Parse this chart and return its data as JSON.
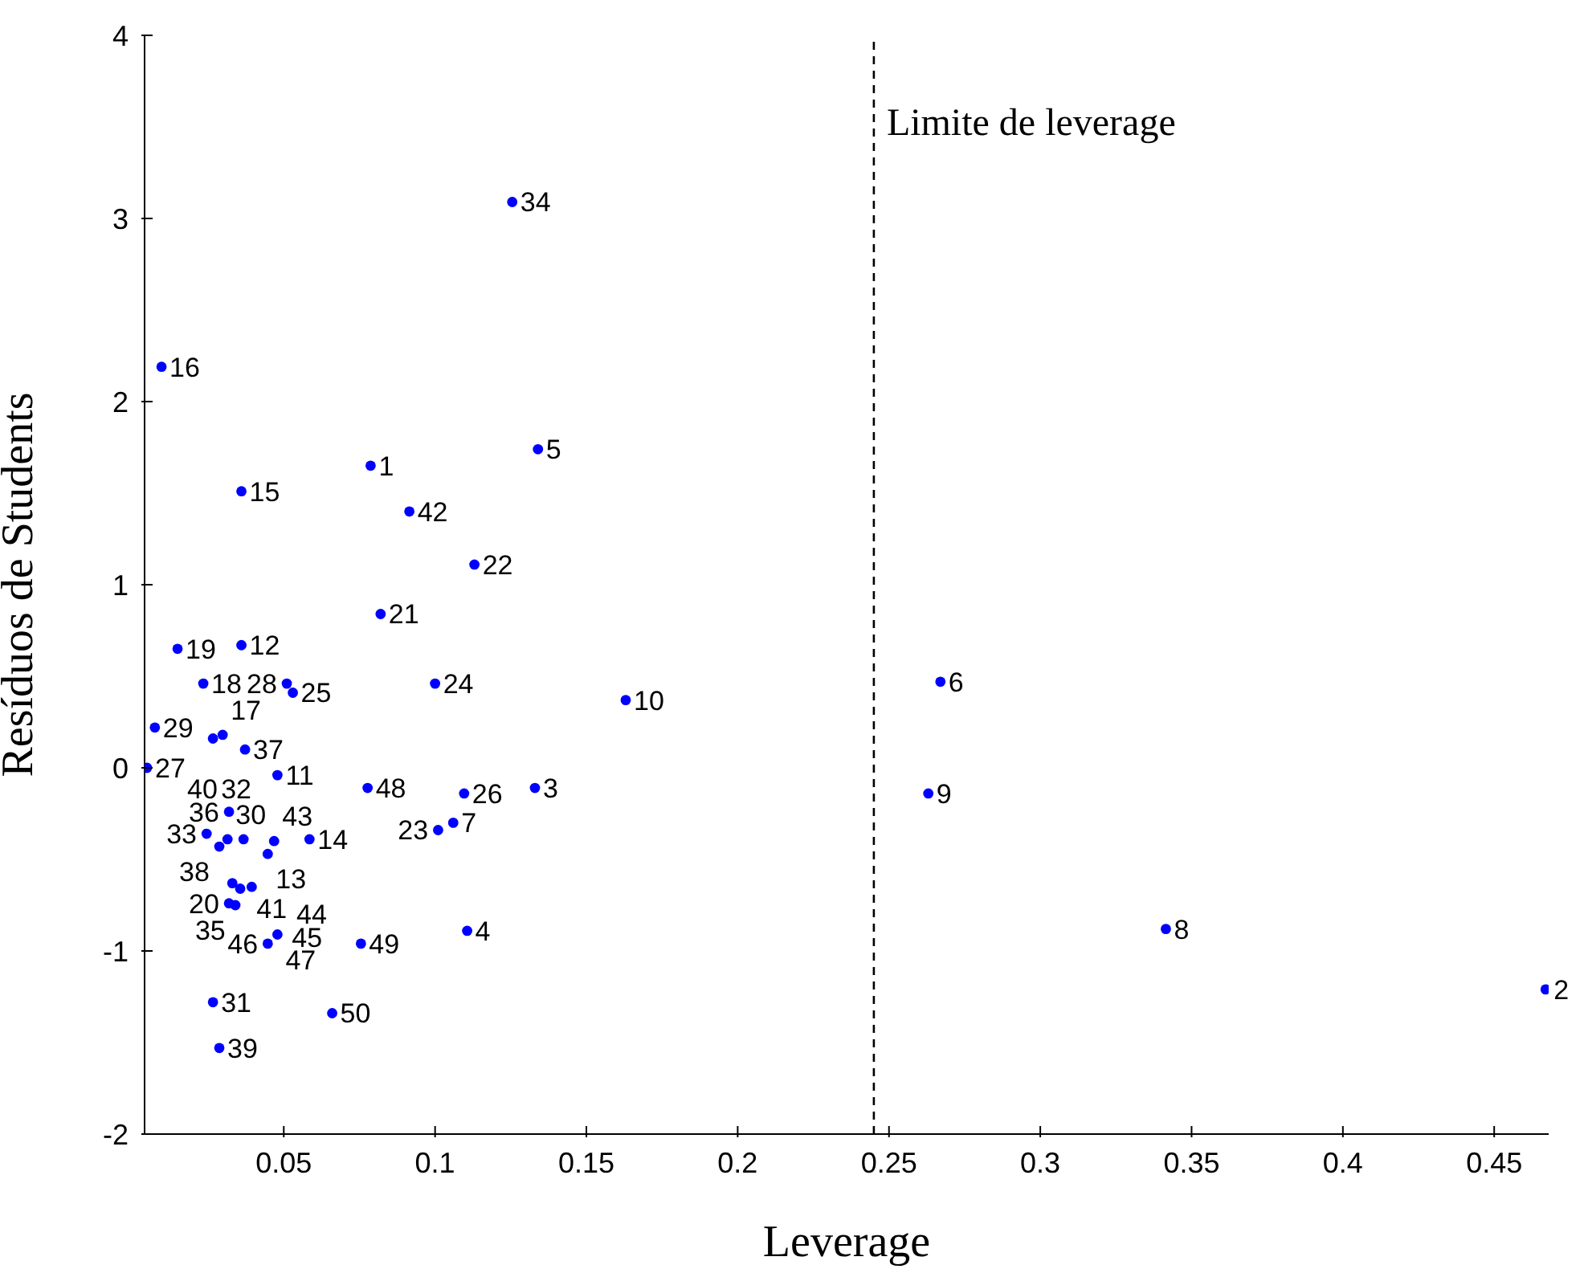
{
  "chart_data": {
    "type": "scatter",
    "xlabel": "Leverage",
    "ylabel": "Resíduos de Students",
    "xlim": [
      0.004,
      0.468
    ],
    "xticks": [
      0.05,
      0.1,
      0.15,
      0.2,
      0.25,
      0.3,
      0.35,
      0.4,
      0.45
    ],
    "ylim": [
      -2,
      4
    ],
    "yticks": [
      -2,
      -1,
      0,
      1,
      2,
      3,
      4
    ],
    "marker": "circle",
    "ref_lines": [
      {
        "axis": "x",
        "value": 0.245,
        "label": "Limite de leverage",
        "color": "#000000",
        "line_style": "dashed"
      }
    ],
    "series": [
      {
        "color": "#0000ff",
        "x": [
          0.0787,
          0.467,
          0.133,
          0.1106,
          0.134,
          0.267,
          0.106,
          0.3415,
          0.263,
          0.163,
          0.0479,
          0.036,
          0.0447,
          0.0585,
          0.036,
          0.0096,
          0.0298,
          0.0234,
          0.0149,
          0.0319,
          0.082,
          0.113,
          0.101,
          0.1,
          0.053,
          0.1096,
          0.0048,
          0.051,
          0.0074,
          0.0314,
          0.0266,
          0.0266,
          0.0245,
          0.1255,
          0.034,
          0.0319,
          0.0372,
          0.0287,
          0.0287,
          0.0367,
          0.033,
          0.0915,
          0.0468,
          0.0356,
          0.0394,
          0.0447,
          0.0479,
          0.0777,
          0.0755,
          0.066
        ],
        "values": [
          1.65,
          -1.21,
          -0.11,
          -0.89,
          1.74,
          0.47,
          -0.3,
          -0.88,
          -0.14,
          0.37,
          -0.04,
          0.67,
          -0.47,
          -0.39,
          1.51,
          2.19,
          0.18,
          0.46,
          0.65,
          -0.74,
          0.84,
          1.11,
          -0.34,
          0.46,
          0.41,
          -0.14,
          0.0,
          0.46,
          0.22,
          -0.39,
          -1.28,
          0.16,
          -0.36,
          3.09,
          -0.75,
          -0.24,
          0.1,
          -0.43,
          -1.53,
          -0.39,
          -0.63,
          1.4,
          -0.4,
          -0.66,
          -0.65,
          -0.96,
          -0.91,
          -0.11,
          -0.96,
          -1.34
        ]
      }
    ],
    "annotations": [
      {
        "text": "1",
        "x": 0.0787,
        "y": 1.65
      },
      {
        "text": "2",
        "x": 0.467,
        "y": -1.21
      },
      {
        "text": "3",
        "x": 0.133,
        "y": -0.11
      },
      {
        "text": "4",
        "x": 0.1106,
        "y": -0.89
      },
      {
        "text": "5",
        "x": 0.134,
        "y": 1.74
      },
      {
        "text": "6",
        "x": 0.267,
        "y": 0.47
      },
      {
        "text": "7",
        "x": 0.106,
        "y": -0.3
      },
      {
        "text": "8",
        "x": 0.3415,
        "y": -0.88
      },
      {
        "text": "9",
        "x": 0.263,
        "y": -0.14
      },
      {
        "text": "10",
        "x": 0.163,
        "y": 0.37
      },
      {
        "text": "11",
        "x": 0.0479,
        "y": -0.04
      },
      {
        "text": "12",
        "x": 0.036,
        "y": 0.67
      },
      {
        "text": "13",
        "x": 0.0447,
        "y": -0.47
      },
      {
        "text": "14",
        "x": 0.0585,
        "y": -0.39
      },
      {
        "text": "15",
        "x": 0.036,
        "y": 1.51
      },
      {
        "text": "16",
        "x": 0.0096,
        "y": 2.19
      },
      {
        "text": "17",
        "x": 0.0298,
        "y": 0.18
      },
      {
        "text": "18",
        "x": 0.0234,
        "y": 0.46
      },
      {
        "text": "19",
        "x": 0.0149,
        "y": 0.65
      },
      {
        "text": "20",
        "x": 0.0319,
        "y": -0.74
      },
      {
        "text": "21",
        "x": 0.082,
        "y": 0.84
      },
      {
        "text": "22",
        "x": 0.113,
        "y": 1.11
      },
      {
        "text": "23",
        "x": 0.101,
        "y": -0.34
      },
      {
        "text": "24",
        "x": 0.1,
        "y": 0.46
      },
      {
        "text": "25",
        "x": 0.053,
        "y": 0.41
      },
      {
        "text": "26",
        "x": 0.1096,
        "y": -0.14
      },
      {
        "text": "27",
        "x": 0.0048,
        "y": 0.0
      },
      {
        "text": "28",
        "x": 0.051,
        "y": 0.46
      },
      {
        "text": "29",
        "x": 0.0074,
        "y": 0.22
      },
      {
        "text": "30",
        "x": 0.0314,
        "y": -0.39
      },
      {
        "text": "31",
        "x": 0.0266,
        "y": -1.28
      },
      {
        "text": "32",
        "x": 0.0266,
        "y": 0.16
      },
      {
        "text": "33",
        "x": 0.0245,
        "y": -0.36
      },
      {
        "text": "34",
        "x": 0.1255,
        "y": 3.09
      },
      {
        "text": "35",
        "x": 0.034,
        "y": -0.75
      },
      {
        "text": "36",
        "x": 0.0319,
        "y": -0.24
      },
      {
        "text": "37",
        "x": 0.0372,
        "y": 0.1
      },
      {
        "text": "38",
        "x": 0.0287,
        "y": -0.43
      },
      {
        "text": "39",
        "x": 0.0287,
        "y": -1.53
      },
      {
        "text": "40",
        "x": 0.0367,
        "y": -0.39
      },
      {
        "text": "41",
        "x": 0.033,
        "y": -0.63
      },
      {
        "text": "42",
        "x": 0.0915,
        "y": 1.4
      },
      {
        "text": "43",
        "x": 0.0468,
        "y": -0.4
      },
      {
        "text": "44",
        "x": 0.0356,
        "y": -0.66
      },
      {
        "text": "45",
        "x": 0.0394,
        "y": -0.65
      },
      {
        "text": "46",
        "x": 0.0447,
        "y": -0.96
      },
      {
        "text": "47",
        "x": 0.0479,
        "y": -0.91
      },
      {
        "text": "48",
        "x": 0.0777,
        "y": -0.11
      },
      {
        "text": "49",
        "x": 0.0755,
        "y": -0.96
      },
      {
        "text": "50",
        "x": 0.066,
        "y": -1.34
      }
    ]
  }
}
